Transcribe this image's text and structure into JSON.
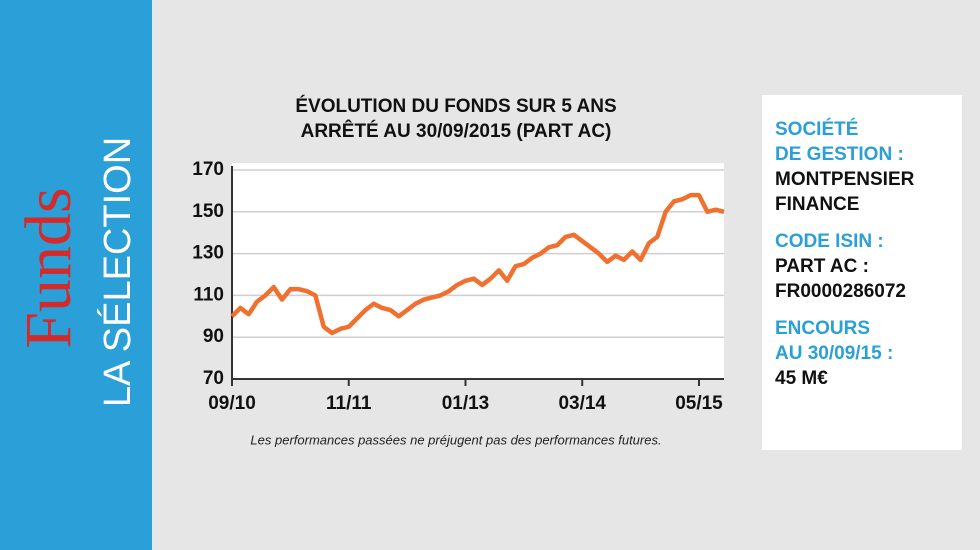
{
  "brand": {
    "title": "Funds",
    "subtitle": "LA SÉLECTION"
  },
  "chart_data": {
    "type": "line",
    "title": "ÉVOLUTION DU FONDS SUR 5 ANS",
    "subtitle": "ARRÊTÉ AU 30/09/2015 (PART AC)",
    "note": "Les performances passées ne préjugent pas des performances futures.",
    "x": [
      "2010-09",
      "2010-10",
      "2010-11",
      "2010-12",
      "2011-01",
      "2011-02",
      "2011-03",
      "2011-04",
      "2011-05",
      "2011-06",
      "2011-07",
      "2011-08",
      "2011-09",
      "2011-10",
      "2011-11",
      "2011-12",
      "2012-01",
      "2012-02",
      "2012-03",
      "2012-04",
      "2012-05",
      "2012-06",
      "2012-07",
      "2012-08",
      "2012-09",
      "2012-10",
      "2012-11",
      "2012-12",
      "2013-01",
      "2013-02",
      "2013-03",
      "2013-04",
      "2013-05",
      "2013-06",
      "2013-07",
      "2013-08",
      "2013-09",
      "2013-10",
      "2013-11",
      "2013-12",
      "2014-01",
      "2014-02",
      "2014-03",
      "2014-04",
      "2014-05",
      "2014-06",
      "2014-07",
      "2014-08",
      "2014-09",
      "2014-10",
      "2014-11",
      "2014-12",
      "2015-01",
      "2015-02",
      "2015-03",
      "2015-04",
      "2015-05",
      "2015-06",
      "2015-07",
      "2015-08"
    ],
    "series": [
      {
        "name": "Part AC",
        "color": "#f07030",
        "values": [
          100,
          104,
          101,
          107,
          110,
          114,
          108,
          113,
          113,
          112,
          110,
          95,
          92,
          94,
          95,
          99,
          103,
          106,
          104,
          103,
          100,
          103,
          106,
          108,
          109,
          110,
          112,
          115,
          117,
          118,
          115,
          118,
          122,
          117,
          124,
          125,
          128,
          130,
          133,
          134,
          138,
          139,
          136,
          133,
          130,
          126,
          129,
          127,
          131,
          127,
          135,
          138,
          150,
          155,
          156,
          158,
          158,
          150,
          151,
          150
        ]
      }
    ],
    "xlim": [
      "2010-09",
      "2015-08"
    ],
    "xticks": [
      {
        "value": "2010-09",
        "label": "09/10"
      },
      {
        "value": "2011-11",
        "label": "11/11"
      },
      {
        "value": "2013-01",
        "label": "01/13"
      },
      {
        "value": "2014-03",
        "label": "03/14"
      },
      {
        "value": "2015-05",
        "label": "05/15"
      }
    ],
    "ylim": [
      70,
      170
    ],
    "yticks": [
      70,
      90,
      110,
      130,
      150,
      170
    ],
    "grid": true
  },
  "info": [
    {
      "label": [
        "SOCIÉTÉ",
        "DE GESTION :"
      ],
      "value": [
        "MONTPENSIER",
        "FINANCE"
      ]
    },
    {
      "label": [
        "CODE ISIN :"
      ],
      "value": [
        "PART AC :",
        "FR0000286072"
      ]
    },
    {
      "label": [
        "ENCOURS",
        "AU 30/09/15 :"
      ],
      "value": [
        "45 M€"
      ]
    }
  ]
}
